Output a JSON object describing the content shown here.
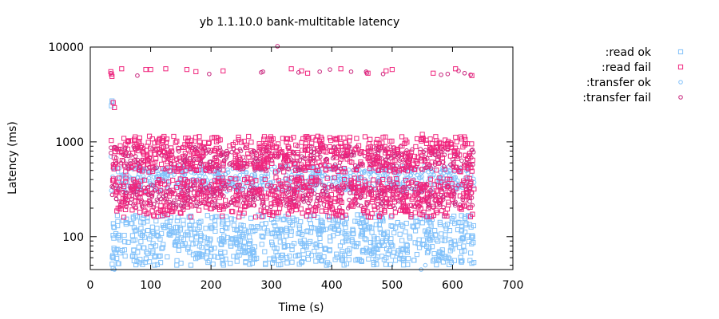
{
  "chart_data": {
    "type": "scatter",
    "title": "yb 1.1.10.0 bank-multitable latency",
    "xlabel": "Time (s)",
    "ylabel": "Latency (ms)",
    "xlim": [
      0,
      700
    ],
    "ylim": [
      45,
      10000
    ],
    "yscale": "log",
    "x_ticks": [
      0,
      100,
      200,
      300,
      400,
      500,
      600,
      700
    ],
    "y_ticks": [
      100,
      1000,
      10000
    ],
    "grid": false,
    "legend_position": "right-outside",
    "series": [
      {
        "name": ":read ok",
        "marker": "square",
        "color": "#81c1fa",
        "t_range": [
          34,
          636
        ],
        "bands": [
          {
            "low": 50,
            "high": 170,
            "weight": 1.0
          }
        ],
        "points": [
          [
            35,
            2400
          ],
          [
            36,
            2700
          ],
          [
            38,
            46
          ]
        ],
        "count": 800
      },
      {
        "name": ":read fail",
        "marker": "square",
        "color": "#f0257d",
        "t_range": [
          34,
          636
        ],
        "bands": [
          {
            "low": 160,
            "high": 420,
            "weight": 0.5
          },
          {
            "low": 480,
            "high": 1150,
            "weight": 0.5
          }
        ],
        "points": [
          [
            34,
            5500
          ],
          [
            35,
            5200
          ],
          [
            36,
            4900
          ],
          [
            38,
            2600
          ],
          [
            40,
            2300
          ],
          [
            52,
            5900
          ],
          [
            92,
            5800
          ],
          [
            100,
            5800
          ],
          [
            125,
            5900
          ],
          [
            160,
            5800
          ],
          [
            175,
            5500
          ],
          [
            220,
            5600
          ],
          [
            300,
            1050
          ],
          [
            333,
            5900
          ],
          [
            350,
            5600
          ],
          [
            360,
            5300
          ],
          [
            415,
            5900
          ],
          [
            420,
            1100
          ],
          [
            460,
            5300
          ],
          [
            490,
            5600
          ],
          [
            500,
            5800
          ],
          [
            550,
            1200
          ],
          [
            568,
            5300
          ],
          [
            605,
            5900
          ],
          [
            632,
            5000
          ]
        ],
        "count": 1200
      },
      {
        "name": ":transfer ok",
        "marker": "circle",
        "color": "#81c1fa",
        "t_range": [
          34,
          636
        ],
        "bands": [
          {
            "low": 300,
            "high": 560,
            "weight": 1.0
          }
        ],
        "points": [
          [
            34,
            700
          ],
          [
            36,
            2600
          ],
          [
            40,
            45
          ],
          [
            548,
            45
          ],
          [
            555,
            50
          ]
        ],
        "count": 700
      },
      {
        "name": ":transfer fail",
        "marker": "circle",
        "color": "#c8257d",
        "t_range": [
          34,
          636
        ],
        "bands": [
          {
            "low": 200,
            "high": 360,
            "weight": 0.5
          },
          {
            "low": 500,
            "high": 900,
            "weight": 0.5
          }
        ],
        "points": [
          [
            34,
            5300
          ],
          [
            78,
            5000
          ],
          [
            197,
            5200
          ],
          [
            283,
            5400
          ],
          [
            286,
            5500
          ],
          [
            310,
            10200
          ],
          [
            345,
            5400
          ],
          [
            380,
            5500
          ],
          [
            397,
            5800
          ],
          [
            432,
            5500
          ],
          [
            457,
            5500
          ],
          [
            458,
            5300
          ],
          [
            485,
            5200
          ],
          [
            581,
            5100
          ],
          [
            592,
            5200
          ],
          [
            610,
            5600
          ],
          [
            620,
            5300
          ],
          [
            630,
            5100
          ]
        ],
        "count": 900
      }
    ]
  }
}
